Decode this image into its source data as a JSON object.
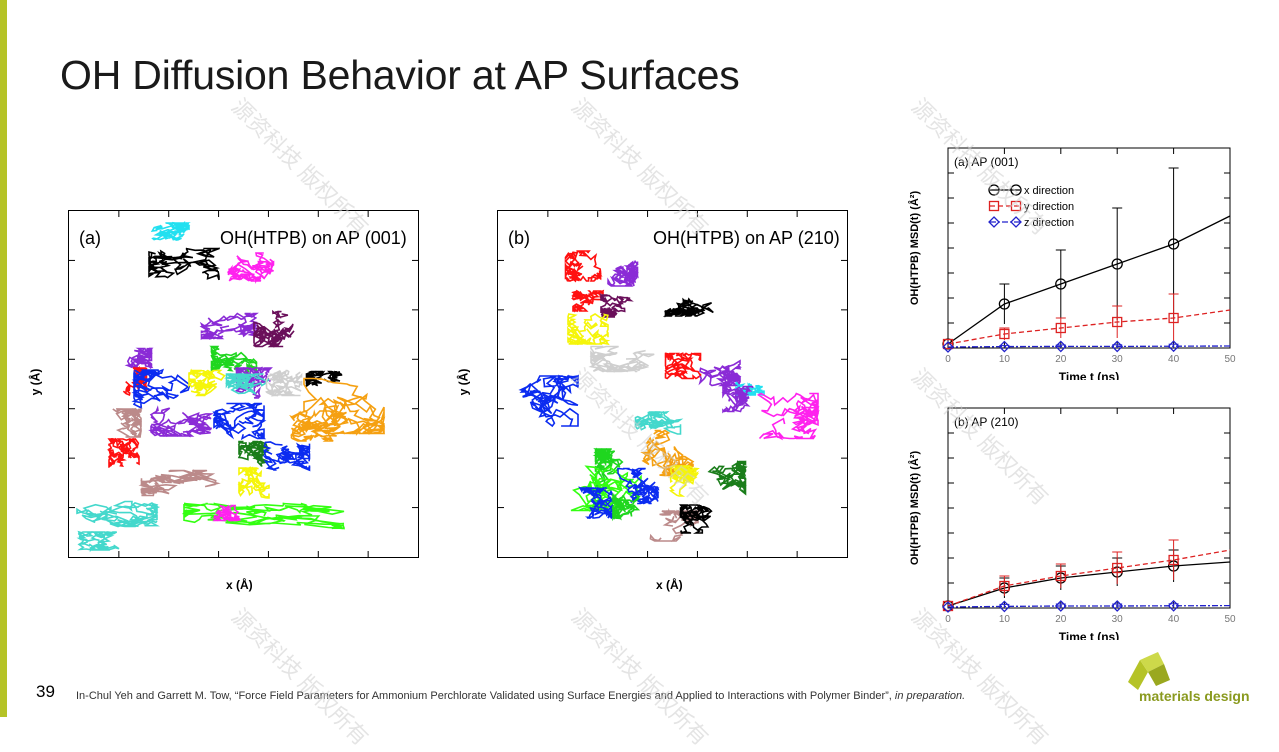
{
  "slide": {
    "title": "OH Diffusion Behavior at AP Surfaces",
    "page_number": "39",
    "citation_main": "In-Chul Yeh and Garrett M. Tow, “Force Field Parameters for Ammonium Perchlorate Validated using Surface Energies and Applied to Interactions with Polymer Binder”, ",
    "citation_italic": "in preparation.",
    "logo_text": "materials design",
    "watermark": "源资科技 版权所有",
    "colors": {
      "accent": "#b5c327",
      "logo_text": "#8a9a1f"
    }
  },
  "chart_data": [
    {
      "type": "scatter",
      "panel": "(a)",
      "title": "OH(HTPB) on AP (001)",
      "xlabel": "x (Å)",
      "ylabel": "y (Å)",
      "description_colors": [
        "cyan",
        "black",
        "magenta",
        "purple",
        "darkpurple",
        "green",
        "red",
        "blue",
        "yellow",
        "gray",
        "orange",
        "rosybrown",
        "turquoise",
        "lime",
        "darkgreen"
      ]
    },
    {
      "type": "scatter",
      "panel": "(b)",
      "title": "OH(HTPB) on AP (210)",
      "xlabel": "x (Å)",
      "ylabel": "y (Å)",
      "description_colors": [
        "red",
        "purple",
        "black",
        "yellow",
        "darkpurple",
        "gray",
        "blue",
        "orange",
        "cyan",
        "magenta",
        "turquoise",
        "lime",
        "green",
        "darkgreen",
        "rosybrown"
      ]
    },
    {
      "type": "line",
      "panel": "(a) AP (001)",
      "xlabel": "Time t (ns)",
      "ylabel": "OH(HTPB) MSD(t) (Å²)",
      "x_ticks": [
        "0",
        "10",
        "20",
        "30",
        "40",
        "50"
      ],
      "ylim": [
        0,
        1
      ],
      "series": [
        {
          "name": "x direction",
          "color": "#000000",
          "x": [
            0,
            10,
            20,
            30,
            40,
            50
          ],
          "values": [
            0.02,
            0.22,
            0.32,
            0.42,
            0.52,
            0.66
          ],
          "err": [
            0,
            0.1,
            0.17,
            0.28,
            0.38,
            0
          ]
        },
        {
          "name": "y direction",
          "color": "#dd2222",
          "x": [
            0,
            10,
            20,
            30,
            40,
            50
          ],
          "values": [
            0.02,
            0.07,
            0.1,
            0.13,
            0.15,
            0.19
          ],
          "err": [
            0,
            0.03,
            0.05,
            0.08,
            0.12,
            0
          ]
        },
        {
          "name": "z direction",
          "color": "#2222cc",
          "x": [
            0,
            10,
            20,
            30,
            40,
            50
          ],
          "values": [
            0.005,
            0.007,
            0.008,
            0.008,
            0.009,
            0.01
          ],
          "err": [
            0,
            0.005,
            0.007,
            0.008,
            0.01,
            0
          ]
        }
      ]
    },
    {
      "type": "line",
      "panel": "(b) AP (210)",
      "xlabel": "Time t (ns)",
      "ylabel": "OH(HTPB) MSD(t) (Å²)",
      "x_ticks": [
        "0",
        "10",
        "20",
        "30",
        "40",
        "50"
      ],
      "ylim": [
        0,
        1
      ],
      "series": [
        {
          "name": "x direction",
          "color": "#000000",
          "x": [
            0,
            10,
            20,
            30,
            40,
            50
          ],
          "values": [
            0.01,
            0.1,
            0.15,
            0.18,
            0.21,
            0.23
          ],
          "err": [
            0,
            0.05,
            0.06,
            0.07,
            0.08,
            0
          ]
        },
        {
          "name": "y direction",
          "color": "#dd2222",
          "x": [
            0,
            10,
            20,
            30,
            40,
            50
          ],
          "values": [
            0.01,
            0.11,
            0.16,
            0.2,
            0.24,
            0.29
          ],
          "err": [
            0,
            0.05,
            0.06,
            0.08,
            0.1,
            0
          ]
        },
        {
          "name": "z direction",
          "color": "#2222cc",
          "x": [
            0,
            10,
            20,
            30,
            40,
            50
          ],
          "values": [
            0.005,
            0.008,
            0.01,
            0.01,
            0.011,
            0.012
          ],
          "err": [
            0,
            0.01,
            0.01,
            0.01,
            0.01,
            0
          ]
        }
      ]
    }
  ]
}
